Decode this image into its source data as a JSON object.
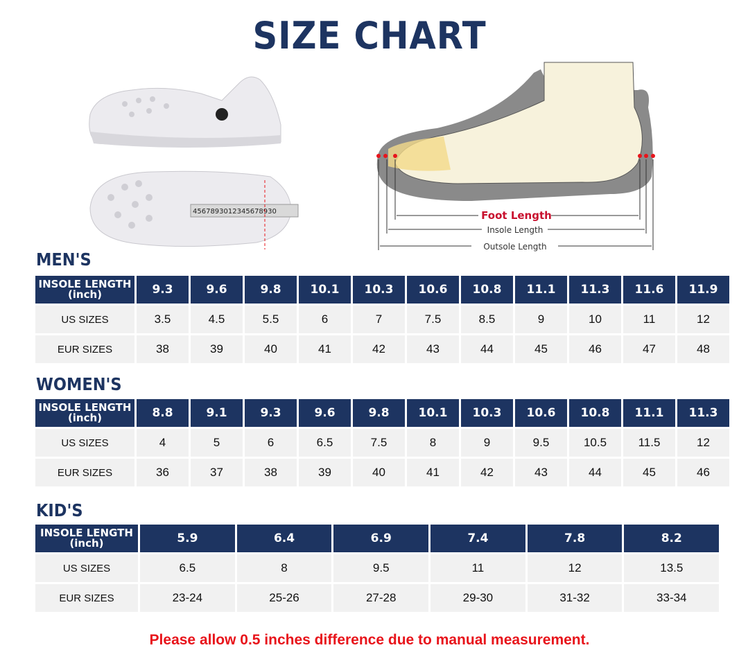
{
  "title": "SIZE CHART",
  "diagram": {
    "foot_length": "Foot Length",
    "insole_length": "Insole Length",
    "outsole_length": "Outsole Length",
    "tape_numbers": "4567893012345678930"
  },
  "row_labels": {
    "insole": "INSOLE LENGTH",
    "unit": "(inch)",
    "us": "US SIZES",
    "eur": "EUR SIZES"
  },
  "tables": [
    {
      "key": "men",
      "heading": "MEN'S",
      "insole": [
        "9.3",
        "9.6",
        "9.8",
        "10.1",
        "10.3",
        "10.6",
        "10.8",
        "11.1",
        "11.3",
        "11.6",
        "11.9"
      ],
      "us": [
        "3.5",
        "4.5",
        "5.5",
        "6",
        "7",
        "7.5",
        "8.5",
        "9",
        "10",
        "11",
        "12"
      ],
      "eur": [
        "38",
        "39",
        "40",
        "41",
        "42",
        "43",
        "44",
        "45",
        "46",
        "47",
        "48"
      ]
    },
    {
      "key": "women",
      "heading": "WOMEN'S",
      "insole": [
        "8.8",
        "9.1",
        "9.3",
        "9.6",
        "9.8",
        "10.1",
        "10.3",
        "10.6",
        "10.8",
        "11.1",
        "11.3"
      ],
      "us": [
        "4",
        "5",
        "6",
        "6.5",
        "7.5",
        "8",
        "9",
        "9.5",
        "10.5",
        "11.5",
        "12"
      ],
      "eur": [
        "36",
        "37",
        "38",
        "39",
        "40",
        "41",
        "42",
        "43",
        "44",
        "45",
        "46"
      ]
    },
    {
      "key": "kids",
      "heading": "KID'S",
      "insole": [
        "5.9",
        "6.4",
        "6.9",
        "7.4",
        "7.8",
        "8.2"
      ],
      "us": [
        "6.5",
        "8",
        "9.5",
        "11",
        "12",
        "13.5"
      ],
      "eur": [
        "23-24",
        "25-26",
        "27-28",
        "29-30",
        "31-32",
        "33-34"
      ]
    }
  ],
  "note": "Please allow 0.5 inches difference due to manual measurement.",
  "colors": {
    "header_bg": "#1d3461",
    "row_bg": "#f1f1f1",
    "note": "#e8141b",
    "foot_length": "#c8102e"
  }
}
